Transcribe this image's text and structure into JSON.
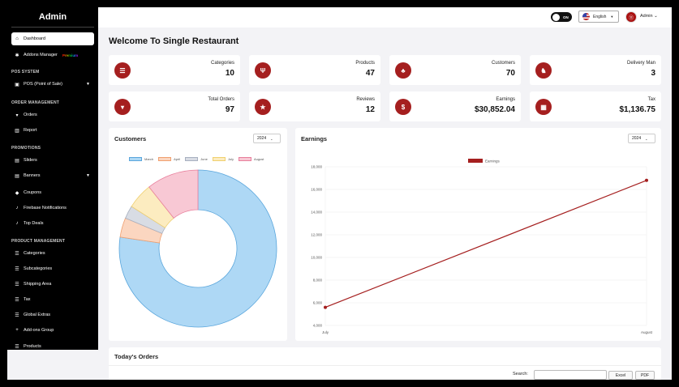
{
  "sidebar": {
    "title": "Admin",
    "dashboard": "Dashboard",
    "addons": "Addons Manager",
    "premium": "Premium",
    "pos_section": "POS SYSTEM",
    "pos": "POS (Point of Sale)",
    "order_section": "ORDER MANAGEMENT",
    "orders": "Orders",
    "report": "Report",
    "promo_section": "PROMOTIONS",
    "sliders": "Sliders",
    "banners": "Banners",
    "coupons": "Coupons",
    "firebase": "Firebase Notifications",
    "top_deals": "Top Deals",
    "product_section": "PRODUCT MANAGEMENT",
    "categories": "Categories",
    "subcategories": "Subcategories",
    "shipping": "Shipping Area",
    "tax": "Tax",
    "global_extras": "Global Extras",
    "addons_group": "Add-ons Group",
    "products": "Products"
  },
  "topbar": {
    "toggle_label": "ON",
    "language": "English",
    "user": "Admin"
  },
  "page_title": "Welcome To Single Restaurant",
  "stats": [
    {
      "label": "Categories",
      "value": "10",
      "icon": "list-icon"
    },
    {
      "label": "Products",
      "value": "47",
      "icon": "utensils-icon"
    },
    {
      "label": "Customers",
      "value": "70",
      "icon": "users-icon"
    },
    {
      "label": "Delivery Man",
      "value": "3",
      "icon": "motorcycle-icon"
    },
    {
      "label": "Total Orders",
      "value": "97",
      "icon": "cart-icon"
    },
    {
      "label": "Reviews",
      "value": "12",
      "icon": "star-icon"
    },
    {
      "label": "Earnings",
      "value": "$30,852.04",
      "icon": "dollar-icon"
    },
    {
      "label": "Tax",
      "value": "$1,136.75",
      "icon": "calculator-icon"
    }
  ],
  "customers_panel": {
    "title": "Customers",
    "year": "2024"
  },
  "earnings_panel": {
    "title": "Earnings",
    "year": "2024"
  },
  "orders_panel": {
    "title": "Today's Orders",
    "search_label": "Search:",
    "excel": "Excel",
    "pdf": "PDF"
  },
  "colors": {
    "accent": "#a51f1f"
  },
  "chart_data": [
    {
      "type": "pie",
      "variant": "doughnut",
      "categories": [
        "March",
        "April",
        "June",
        "July",
        "August"
      ],
      "values": [
        58,
        3,
        2,
        4,
        8
      ],
      "colors": [
        "#aed8f5",
        "#fbd6c0",
        "#d8dce4",
        "#fcecc0",
        "#f8c8d4"
      ],
      "borders": [
        "#5aa6dc",
        "#f0a070",
        "#a8b0c0",
        "#f0d070",
        "#e87f9c"
      ],
      "legend": "top"
    },
    {
      "type": "line",
      "x": [
        "July",
        "August"
      ],
      "series": [
        {
          "name": "Earnings",
          "values": [
            5600,
            16800
          ]
        }
      ],
      "ylim": [
        4000,
        18000
      ],
      "yticks": [
        "4,000",
        "6,000",
        "8,000",
        "10,000",
        "12,000",
        "14,000",
        "16,000",
        "18,000"
      ],
      "color": "#a51f1f",
      "legend": "top"
    }
  ]
}
